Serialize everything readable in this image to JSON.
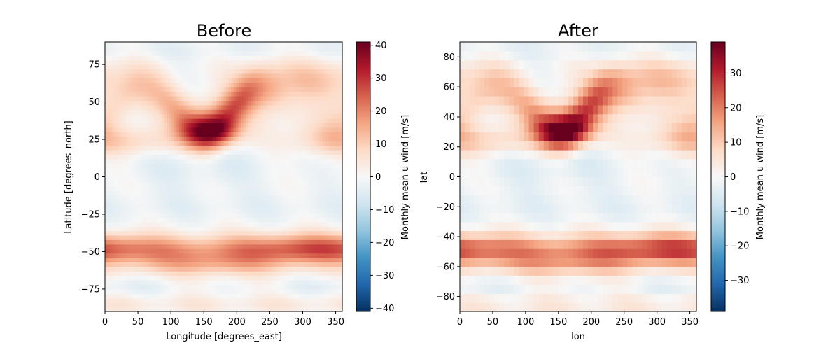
{
  "chart_data": [
    {
      "type": "heatmap",
      "title": "Before",
      "xlabel": "Longitude [degrees_east]",
      "ylabel": "Latitude [degrees_north]",
      "xlim": [
        0,
        360
      ],
      "ylim": [
        -90,
        90
      ],
      "x_ticks": [
        0,
        50,
        100,
        150,
        200,
        250,
        300,
        350
      ],
      "y_ticks": [
        -75,
        -50,
        -25,
        0,
        25,
        50,
        75
      ],
      "resolution": "smooth",
      "colorbar": {
        "label": "Monthly mean u wind [m/s]",
        "range": [
          -41,
          41
        ],
        "ticks": [
          -40,
          -30,
          -20,
          -10,
          0,
          10,
          20,
          30,
          40
        ],
        "colormap": "RdBu_r"
      }
    },
    {
      "type": "heatmap",
      "title": "After",
      "xlabel": "lon",
      "ylabel": "lat",
      "xlim": [
        0,
        360
      ],
      "ylim": [
        -90,
        90
      ],
      "x_ticks": [
        0,
        50,
        100,
        150,
        200,
        250,
        300,
        350
      ],
      "y_ticks": [
        -80,
        -60,
        -40,
        -20,
        0,
        20,
        40,
        60,
        80
      ],
      "resolution": "coarse",
      "colorbar": {
        "label": "Monthly mean u wind [m/s]",
        "range": [
          -39,
          39
        ],
        "ticks": [
          -30,
          -20,
          -10,
          0,
          10,
          20,
          30
        ],
        "colormap": "RdBu_r"
      }
    }
  ],
  "colors": {
    "cmap_stops": [
      "#053061",
      "#2166ac",
      "#4393c3",
      "#92c5de",
      "#d1e5f0",
      "#f7f7f7",
      "#fddbc7",
      "#f4a582",
      "#d6604d",
      "#b2182b",
      "#67001f"
    ]
  }
}
